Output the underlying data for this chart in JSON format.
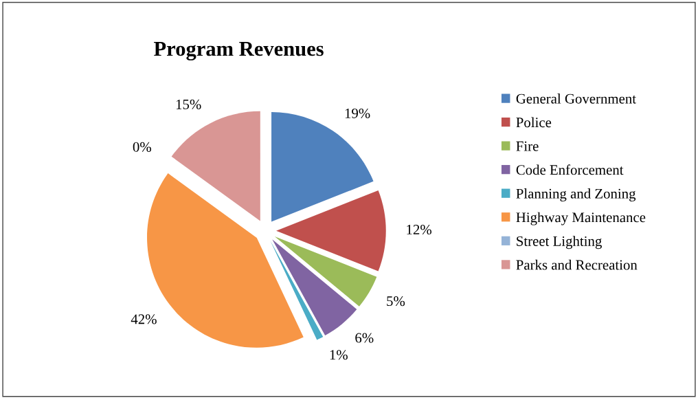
{
  "chart_data": {
    "type": "pie",
    "title": "Program Revenues",
    "categories": [
      "General Government",
      "Police",
      "Fire",
      "Code Enforcement",
      "Planning and Zoning",
      "Highway Maintenance",
      "Street Lighting",
      "Parks and Recreation"
    ],
    "values": [
      19,
      12,
      5,
      6,
      1,
      42,
      0,
      15
    ],
    "value_labels": [
      "19%",
      "12%",
      "5%",
      "6%",
      "1%",
      "42%",
      "0%",
      "15%"
    ],
    "colors": [
      "#4f81bd",
      "#c0504d",
      "#9bbb59",
      "#8064a2",
      "#4bacc6",
      "#f79646",
      "#95b3d7",
      "#d99694"
    ],
    "legend": "right"
  }
}
